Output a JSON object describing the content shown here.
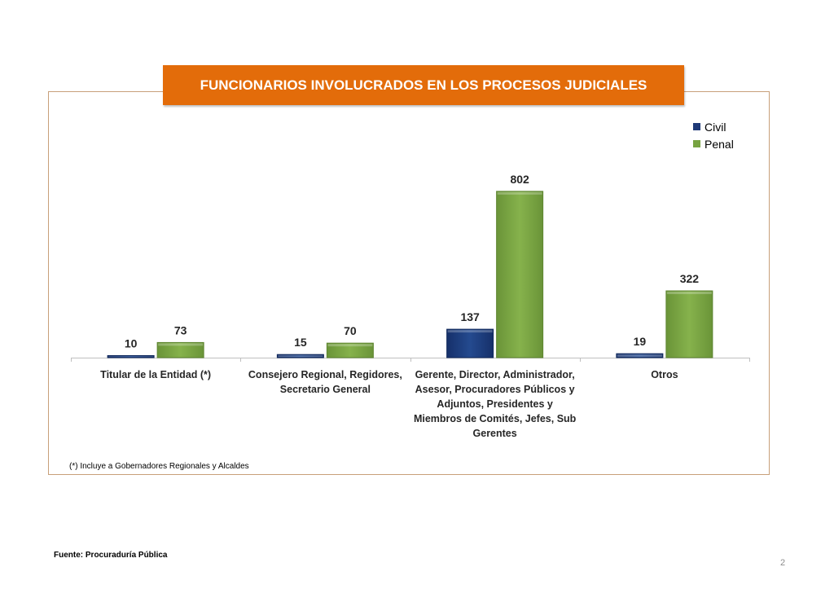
{
  "title": "FUNCIONARIOS  INVOLUCRADOS EN LOS PROCESOS JUDICIALES",
  "footnote": "(*) Incluye a Gobernadores Regionales y Alcaldes",
  "source": "Fuente: Procuraduría Pública",
  "page_number": "2",
  "colors": {
    "civil": "#1f3a78",
    "penal": "#77a341",
    "title_bg": "#e36c0a"
  },
  "chart_data": {
    "type": "bar",
    "title": "FUNCIONARIOS  INVOLUCRADOS EN LOS PROCESOS JUDICIALES",
    "categories": [
      [
        "Titular de la Entidad (*)"
      ],
      [
        "Consejero Regional, Regidores,",
        "Secretario General"
      ],
      [
        "Gerente, Director, Administrador,",
        "Asesor, Procuradores Públicos y",
        "Adjuntos, Presidentes y",
        "Miembros de Comités, Jefes, Sub",
        "Gerentes"
      ],
      [
        "Otros"
      ]
    ],
    "series": [
      {
        "name": "Civil",
        "values": [
          10,
          15,
          137,
          19
        ]
      },
      {
        "name": "Penal",
        "values": [
          73,
          70,
          802,
          322
        ]
      }
    ],
    "ylim": [
      0,
      880
    ],
    "grid": false,
    "legend_position": "top-right",
    "data_labels": true
  }
}
